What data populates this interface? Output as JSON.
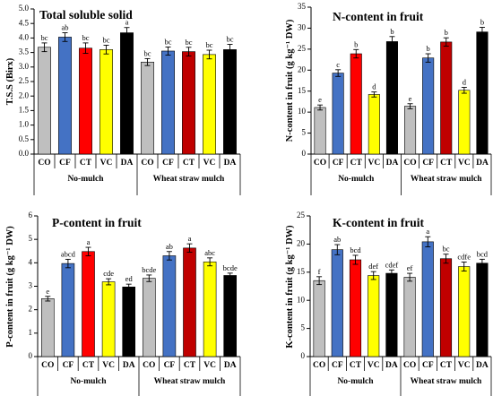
{
  "chart_data": [
    {
      "type": "bar",
      "title": "Total soluble solid",
      "ylabel": "T.S.S  (Birx)",
      "ylim": [
        0,
        5
      ],
      "yticks": [
        "0.0",
        "0.5",
        "1.0",
        "1.5",
        "2.0",
        "2.5",
        "3.0",
        "3.5",
        "4.0",
        "4.5",
        "5.0"
      ],
      "categories": [
        "CO",
        "CF",
        "CT",
        "VC",
        "DA",
        "CO",
        "CF",
        "CT",
        "VC",
        "DA"
      ],
      "groups": [
        "No-mulch",
        "Wheat straw mulch"
      ],
      "values": [
        3.68,
        4.03,
        3.65,
        3.6,
        4.18,
        3.17,
        3.55,
        3.53,
        3.43,
        3.6
      ],
      "errors": [
        0.15,
        0.15,
        0.18,
        0.15,
        0.18,
        0.12,
        0.14,
        0.15,
        0.15,
        0.18
      ],
      "letters": [
        "bc",
        "ab",
        "bc",
        "bc",
        "a",
        "bc",
        "bc",
        "bc",
        "bc",
        "bc"
      ]
    },
    {
      "type": "bar",
      "title": "N-content in fruit",
      "ylabel": "N-content in fruit (g kg⁻¹ DW)",
      "ylim": [
        0,
        35
      ],
      "yticks": [
        "0",
        "5",
        "10",
        "15",
        "20",
        "25",
        "30",
        "35"
      ],
      "categories": [
        "CO",
        "CF",
        "CT",
        "VC",
        "DA",
        "CO",
        "CF",
        "CT",
        "VC",
        "DA"
      ],
      "groups": [
        "No-mulch",
        "Wheat straw mulch"
      ],
      "values": [
        11.1,
        19.3,
        23.9,
        14.2,
        26.8,
        11.4,
        22.9,
        26.7,
        15.2,
        29.1
      ],
      "errors": [
        0.6,
        0.8,
        1.0,
        0.6,
        1.2,
        0.6,
        1.0,
        1.0,
        0.7,
        1.1
      ],
      "letters": [
        "e",
        "c",
        "b",
        "d",
        "b",
        "e",
        "b",
        "b",
        "d",
        "b"
      ]
    },
    {
      "type": "bar",
      "title": "P-content in fruit",
      "ylabel": "P-content in fruit (g kg⁻¹ DW)",
      "ylim": [
        0,
        6
      ],
      "yticks": [
        "0",
        "1",
        "2",
        "3",
        "4",
        "5",
        "6"
      ],
      "categories": [
        "CO",
        "CF",
        "CT",
        "VC",
        "DA",
        "CO",
        "CF",
        "CT",
        "VC",
        "DA"
      ],
      "groups": [
        "No-mulch",
        "Wheat straw mulch"
      ],
      "values": [
        2.47,
        3.97,
        4.48,
        3.19,
        2.97,
        3.34,
        4.3,
        4.63,
        4.04,
        3.46
      ],
      "errors": [
        0.1,
        0.18,
        0.18,
        0.13,
        0.12,
        0.14,
        0.18,
        0.18,
        0.17,
        0.1
      ],
      "letters": [
        "e",
        "abcd",
        "a",
        "cde",
        "ed",
        "bcde",
        "ab",
        "a",
        "abc",
        "bcde"
      ]
    },
    {
      "type": "bar",
      "title": "K-content in fruit",
      "ylabel": "K-content in fruit (g kg⁻¹ DW)",
      "ylim": [
        0,
        25
      ],
      "yticks": [
        "0",
        "5",
        "10",
        "15",
        "20",
        "25"
      ],
      "categories": [
        "CO",
        "CF",
        "CT",
        "VC",
        "DA",
        "CO",
        "CF",
        "CT",
        "VC",
        "DA"
      ],
      "groups": [
        "No-mulch",
        "Wheat straw mulch"
      ],
      "values": [
        13.5,
        19.0,
        17.2,
        14.4,
        14.8,
        14.1,
        20.4,
        17.4,
        16.0,
        16.6
      ],
      "errors": [
        0.7,
        0.9,
        0.8,
        0.7,
        0.6,
        0.7,
        0.9,
        0.8,
        0.8,
        0.7
      ],
      "letters": [
        "f",
        "ab",
        "bcd",
        "def",
        "cdef",
        "ef",
        "a",
        "bc",
        "cdfe",
        "bcd"
      ]
    }
  ],
  "colors": {
    "CO": "#bfbfbf",
    "CF": "#4472c4",
    "CT": "#ff0000",
    "VC": "#ffff00",
    "DA": "#000000",
    "CT_mulch": "#c00000"
  }
}
